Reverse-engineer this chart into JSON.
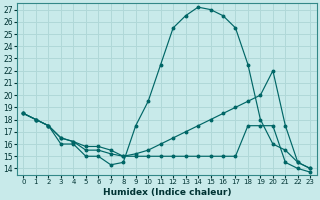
{
  "title": "",
  "xlabel": "Humidex (Indice chaleur)",
  "background_color": "#c8eaea",
  "grid_color": "#b0d8d8",
  "line_color": "#006666",
  "x_ticks": [
    0,
    1,
    2,
    3,
    4,
    5,
    6,
    7,
    8,
    9,
    10,
    11,
    12,
    13,
    14,
    15,
    16,
    17,
    18,
    19,
    20,
    21,
    22,
    23
  ],
  "y_ticks": [
    14,
    15,
    16,
    17,
    18,
    19,
    20,
    21,
    22,
    23,
    24,
    25,
    26,
    27
  ],
  "ylim": [
    13.5,
    27.5
  ],
  "xlim": [
    -0.5,
    23.5
  ],
  "series1_y": [
    18.5,
    18.0,
    17.5,
    16.0,
    16.0,
    15.0,
    15.0,
    14.3,
    14.5,
    17.5,
    19.5,
    22.5,
    25.5,
    26.5,
    27.2,
    27.0,
    26.5,
    25.5,
    22.5,
    18.0,
    16.0,
    15.5,
    14.5,
    14.0
  ],
  "series2_y": [
    18.5,
    18.0,
    17.5,
    16.5,
    16.2,
    15.8,
    15.8,
    15.5,
    15.0,
    15.2,
    15.5,
    16.0,
    16.5,
    17.0,
    17.5,
    18.0,
    18.5,
    19.0,
    19.5,
    20.0,
    22.0,
    17.5,
    14.5,
    14.0
  ],
  "series3_y": [
    18.5,
    18.0,
    17.5,
    16.5,
    16.2,
    15.5,
    15.5,
    15.2,
    15.0,
    15.0,
    15.0,
    15.0,
    15.0,
    15.0,
    15.0,
    15.0,
    15.0,
    15.0,
    17.5,
    17.5,
    17.5,
    14.5,
    14.0,
    13.7
  ]
}
